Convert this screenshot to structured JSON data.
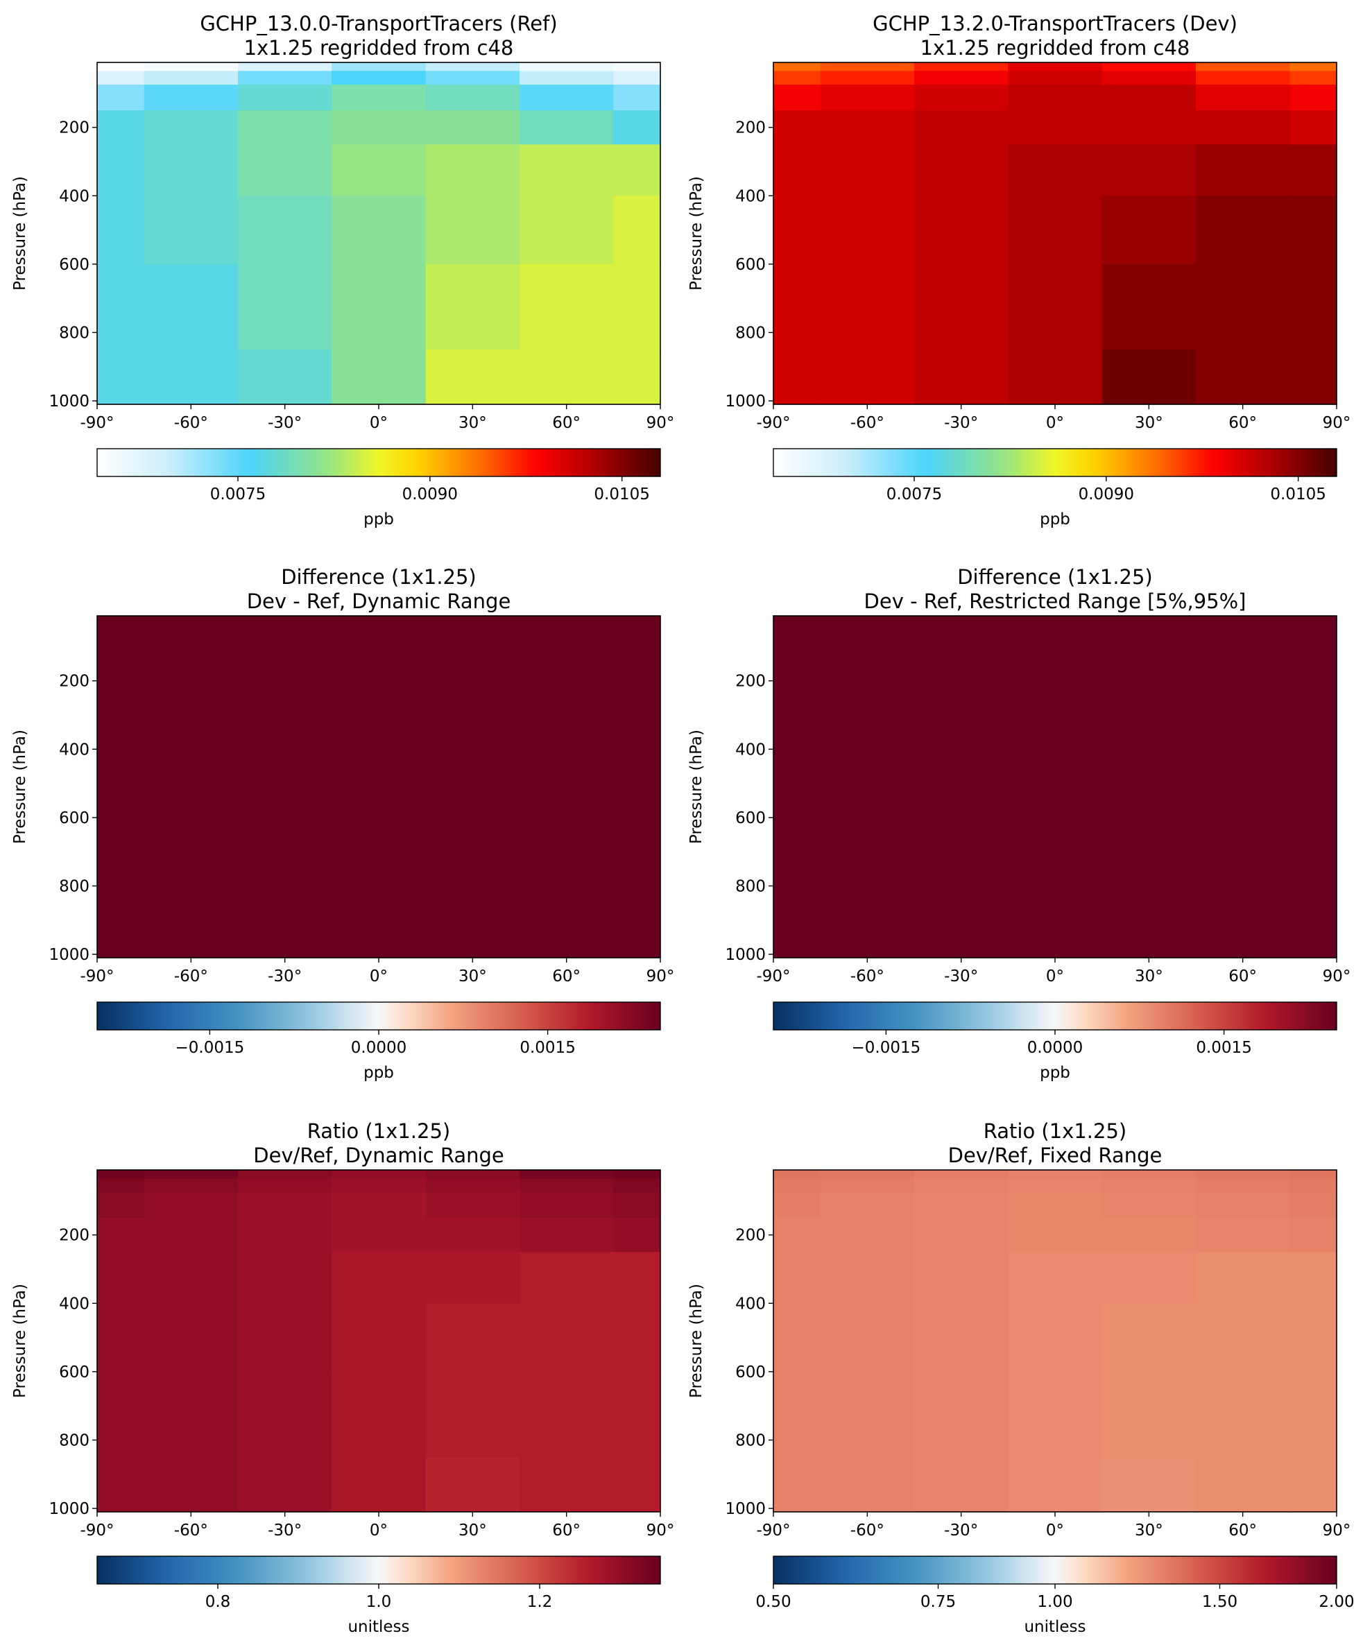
{
  "chart_data": [
    {
      "type": "heatmap",
      "title": "GCHP_13.0.0-TransportTracers (Ref)",
      "subtitle": "1x1.25 regridded from c48",
      "ylabel": "Pressure (hPa)",
      "xlabel": "",
      "x_ticks": [
        "-90°",
        "-60°",
        "-30°",
        "0°",
        "30°",
        "60°",
        "90°"
      ],
      "x_tick_values": [
        -90,
        -60,
        -30,
        0,
        30,
        60,
        90
      ],
      "y_ticks": [
        "200",
        "400",
        "600",
        "800",
        "1000"
      ],
      "y_tick_values": [
        200,
        400,
        600,
        800,
        1000
      ],
      "xlim": [
        -90,
        90
      ],
      "ylim": [
        1010,
        10
      ],
      "colormap": "WhGrYlRd",
      "clim": [
        0.0064,
        0.0108
      ],
      "colorbar": {
        "ticks": [
          "0.0075",
          "0.0090",
          "0.0105"
        ],
        "tick_values": [
          0.0075,
          0.009,
          0.0105
        ],
        "label": "ppb"
      },
      "field": {
        "x": [
          -90,
          -60,
          -30,
          0,
          30,
          60,
          90
        ],
        "y": [
          20,
          50,
          100,
          200,
          300,
          500,
          700,
          1000
        ],
        "values": [
          [
            0.0064,
            0.0065,
            0.0068,
            0.0072,
            0.007,
            0.0066,
            0.0065
          ],
          [
            0.0068,
            0.007,
            0.0074,
            0.0076,
            0.0074,
            0.007,
            0.0068
          ],
          [
            0.0073,
            0.0075,
            0.0078,
            0.008,
            0.0079,
            0.0075,
            0.0073
          ],
          [
            0.0077,
            0.0078,
            0.008,
            0.0081,
            0.0081,
            0.0079,
            0.0077
          ],
          [
            0.0077,
            0.0078,
            0.008,
            0.0082,
            0.0083,
            0.0084,
            0.0084
          ],
          [
            0.0077,
            0.0078,
            0.0079,
            0.0081,
            0.0083,
            0.0084,
            0.0085
          ],
          [
            0.0077,
            0.0077,
            0.0079,
            0.0081,
            0.0084,
            0.0085,
            0.0085
          ],
          [
            0.0077,
            0.0077,
            0.0078,
            0.0081,
            0.0085,
            0.0085,
            0.0085
          ]
        ]
      }
    },
    {
      "type": "heatmap",
      "title": "GCHP_13.2.0-TransportTracers (Dev)",
      "subtitle": "1x1.25 regridded from c48",
      "ylabel": "Pressure (hPa)",
      "xlabel": "",
      "x_ticks": [
        "-90°",
        "-60°",
        "-30°",
        "0°",
        "30°",
        "60°",
        "90°"
      ],
      "x_tick_values": [
        -90,
        -60,
        -30,
        0,
        30,
        60,
        90
      ],
      "y_ticks": [
        "200",
        "400",
        "600",
        "800",
        "1000"
      ],
      "y_tick_values": [
        200,
        400,
        600,
        800,
        1000
      ],
      "xlim": [
        -90,
        90
      ],
      "ylim": [
        1010,
        10
      ],
      "colormap": "WhGrYlRd",
      "clim": [
        0.0064,
        0.0108
      ],
      "colorbar": {
        "ticks": [
          "0.0075",
          "0.0090",
          "0.0105"
        ],
        "tick_values": [
          0.0075,
          0.009,
          0.0105
        ],
        "label": "ppb"
      },
      "field": {
        "x": [
          -90,
          -60,
          -30,
          0,
          30,
          60,
          90
        ],
        "y": [
          20,
          50,
          100,
          200,
          300,
          500,
          700,
          1000
        ],
        "values": [
          [
            0.0094,
            0.0095,
            0.0097,
            0.01,
            0.0098,
            0.0095,
            0.0094
          ],
          [
            0.0096,
            0.0097,
            0.0099,
            0.0101,
            0.01,
            0.0097,
            0.0096
          ],
          [
            0.0099,
            0.01,
            0.0101,
            0.0102,
            0.0102,
            0.01,
            0.0099
          ],
          [
            0.0101,
            0.0101,
            0.0102,
            0.0102,
            0.0102,
            0.0102,
            0.0101
          ],
          [
            0.0101,
            0.0101,
            0.0102,
            0.0103,
            0.0103,
            0.0104,
            0.0104
          ],
          [
            0.0101,
            0.0101,
            0.0102,
            0.0103,
            0.0104,
            0.0105,
            0.0105
          ],
          [
            0.0101,
            0.0101,
            0.0102,
            0.0103,
            0.0105,
            0.0105,
            0.0105
          ],
          [
            0.0101,
            0.0101,
            0.0102,
            0.0103,
            0.0106,
            0.0105,
            0.0105
          ]
        ]
      }
    },
    {
      "type": "heatmap",
      "title": "Difference (1x1.25)",
      "subtitle": "Dev - Ref, Dynamic Range",
      "ylabel": "Pressure (hPa)",
      "xlabel": "",
      "x_ticks": [
        "-90°",
        "-60°",
        "-30°",
        "0°",
        "30°",
        "60°",
        "90°"
      ],
      "x_tick_values": [
        -90,
        -60,
        -30,
        0,
        30,
        60,
        90
      ],
      "y_ticks": [
        "200",
        "400",
        "600",
        "800",
        "1000"
      ],
      "y_tick_values": [
        200,
        400,
        600,
        800,
        1000
      ],
      "xlim": [
        -90,
        90
      ],
      "ylim": [
        1010,
        10
      ],
      "colormap": "RdBu_r",
      "clim": [
        -0.0025,
        0.0025
      ],
      "colorbar": {
        "ticks": [
          "−0.0015",
          "0.0000",
          "0.0015"
        ],
        "tick_values": [
          -0.0015,
          0.0,
          0.0015
        ],
        "label": "ppb"
      },
      "field": {
        "x": [
          -90,
          90
        ],
        "y": [
          10,
          1010
        ],
        "values": [
          [
            0.0025,
            0.0025
          ],
          [
            0.0025,
            0.0025
          ]
        ]
      }
    },
    {
      "type": "heatmap",
      "title": "Difference (1x1.25)",
      "subtitle": "Dev - Ref, Restricted Range [5%,95%]",
      "ylabel": "Pressure (hPa)",
      "xlabel": "",
      "x_ticks": [
        "-90°",
        "-60°",
        "-30°",
        "0°",
        "30°",
        "60°",
        "90°"
      ],
      "x_tick_values": [
        -90,
        -60,
        -30,
        0,
        30,
        60,
        90
      ],
      "y_ticks": [
        "200",
        "400",
        "600",
        "800",
        "1000"
      ],
      "y_tick_values": [
        200,
        400,
        600,
        800,
        1000
      ],
      "xlim": [
        -90,
        90
      ],
      "ylim": [
        1010,
        10
      ],
      "colormap": "RdBu_r",
      "clim": [
        -0.0025,
        0.0025
      ],
      "colorbar": {
        "ticks": [
          "−0.0015",
          "0.0000",
          "0.0015"
        ],
        "tick_values": [
          -0.0015,
          0.0,
          0.0015
        ],
        "label": "ppb"
      },
      "field": {
        "x": [
          -90,
          90
        ],
        "y": [
          10,
          1010
        ],
        "values": [
          [
            0.0025,
            0.0025
          ],
          [
            0.0025,
            0.0025
          ]
        ]
      }
    },
    {
      "type": "heatmap",
      "title": "Ratio (1x1.25)",
      "subtitle": "Dev/Ref, Dynamic Range",
      "ylabel": "Pressure (hPa)",
      "xlabel": "",
      "x_ticks": [
        "-90°",
        "-60°",
        "-30°",
        "0°",
        "30°",
        "60°",
        "90°"
      ],
      "x_tick_values": [
        -90,
        -60,
        -30,
        0,
        30,
        60,
        90
      ],
      "y_ticks": [
        "200",
        "400",
        "600",
        "800",
        "1000"
      ],
      "y_tick_values": [
        200,
        400,
        600,
        800,
        1000
      ],
      "xlim": [
        -90,
        90
      ],
      "ylim": [
        1010,
        10
      ],
      "colormap": "RdBu_r",
      "clim": [
        0.65,
        1.35
      ],
      "colorbar": {
        "ticks": [
          "0.8",
          "1.0",
          "1.2"
        ],
        "tick_values": [
          0.8,
          1.0,
          1.2
        ],
        "label": "unitless"
      },
      "field": {
        "x": [
          -90,
          -60,
          -30,
          0,
          30,
          60,
          90
        ],
        "y": [
          20,
          50,
          100,
          200,
          300,
          500,
          700,
          1000
        ],
        "values": [
          [
            1.34,
            1.33,
            1.31,
            1.3,
            1.31,
            1.33,
            1.34
          ],
          [
            1.32,
            1.31,
            1.3,
            1.29,
            1.3,
            1.31,
            1.32
          ],
          [
            1.31,
            1.3,
            1.29,
            1.28,
            1.29,
            1.3,
            1.31
          ],
          [
            1.3,
            1.3,
            1.29,
            1.28,
            1.28,
            1.29,
            1.3
          ],
          [
            1.3,
            1.3,
            1.29,
            1.27,
            1.27,
            1.26,
            1.26
          ],
          [
            1.3,
            1.3,
            1.29,
            1.27,
            1.26,
            1.26,
            1.26
          ],
          [
            1.3,
            1.3,
            1.29,
            1.27,
            1.26,
            1.26,
            1.26
          ],
          [
            1.3,
            1.3,
            1.29,
            1.27,
            1.25,
            1.26,
            1.26
          ]
        ]
      }
    },
    {
      "type": "heatmap",
      "title": "Ratio (1x1.25)",
      "subtitle": "Dev/Ref, Fixed Range",
      "ylabel": "Pressure (hPa)",
      "xlabel": "",
      "x_ticks": [
        "-90°",
        "-60°",
        "-30°",
        "0°",
        "30°",
        "60°",
        "90°"
      ],
      "x_tick_values": [
        -90,
        -60,
        -30,
        0,
        30,
        60,
        90
      ],
      "y_ticks": [
        "200",
        "400",
        "600",
        "800",
        "1000"
      ],
      "y_tick_values": [
        200,
        400,
        600,
        800,
        1000
      ],
      "xlim": [
        -90,
        90
      ],
      "ylim": [
        1010,
        10
      ],
      "colormap": "RdBu_r",
      "color_scale": "log",
      "clim": [
        0.5,
        2.0
      ],
      "colorbar": {
        "ticks": [
          "0.50",
          "0.75",
          "1.00",
          "1.50",
          "2.00"
        ],
        "tick_values": [
          0.5,
          0.75,
          1.0,
          1.5,
          2.0
        ],
        "label": "unitless"
      },
      "field": {
        "x": [
          -90,
          -60,
          -30,
          0,
          30,
          60,
          90
        ],
        "y": [
          20,
          50,
          100,
          200,
          300,
          500,
          700,
          1000
        ],
        "values": [
          [
            1.34,
            1.33,
            1.31,
            1.3,
            1.31,
            1.33,
            1.34
          ],
          [
            1.32,
            1.31,
            1.3,
            1.29,
            1.3,
            1.31,
            1.32
          ],
          [
            1.31,
            1.3,
            1.29,
            1.28,
            1.29,
            1.3,
            1.31
          ],
          [
            1.3,
            1.3,
            1.29,
            1.28,
            1.28,
            1.29,
            1.3
          ],
          [
            1.3,
            1.3,
            1.29,
            1.27,
            1.27,
            1.26,
            1.26
          ],
          [
            1.3,
            1.3,
            1.29,
            1.27,
            1.26,
            1.26,
            1.26
          ],
          [
            1.3,
            1.3,
            1.29,
            1.27,
            1.26,
            1.26,
            1.26
          ],
          [
            1.3,
            1.3,
            1.29,
            1.27,
            1.25,
            1.26,
            1.26
          ]
        ]
      }
    }
  ]
}
